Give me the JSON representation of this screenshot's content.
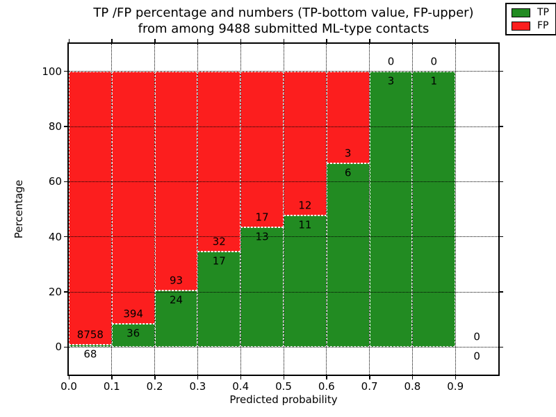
{
  "title": {
    "line1": "TP /FP percentage and numbers (TP-bottom value, FP-upper)",
    "line2": "from among 9488 submitted ML-type contacts"
  },
  "axes": {
    "xlabel": "Predicted probability",
    "ylabel": "Percentage",
    "xtick_labels": [
      "0.0",
      "0.1",
      "0.2",
      "0.3",
      "0.4",
      "0.5",
      "0.6",
      "0.7",
      "0.8",
      "0.9"
    ],
    "ytick_labels": [
      "0",
      "20",
      "40",
      "60",
      "80",
      "100"
    ]
  },
  "legend": [
    {
      "label": "TP",
      "color": "#228b22"
    },
    {
      "label": "FP",
      "color": "#fc1e1e"
    }
  ],
  "colors": {
    "tp": "#228b22",
    "fp": "#fc1e1e",
    "grid": "#000000",
    "bar_edge": "#ffffff"
  },
  "chart_data": {
    "type": "bar",
    "stacked": true,
    "normalized_to_percent": true,
    "title": "TP /FP percentage and numbers (TP-bottom value, FP-upper) from among 9488 submitted ML-type contacts",
    "xlabel": "Predicted probability",
    "ylabel": "Percentage",
    "total_contacts": 9488,
    "bin_width": 0.1,
    "bin_starts": [
      0.0,
      0.1,
      0.2,
      0.3,
      0.4,
      0.5,
      0.6,
      0.7,
      0.8,
      0.9
    ],
    "series": [
      {
        "name": "TP",
        "color": "#228b22",
        "position": "bottom",
        "values": [
          68,
          36,
          24,
          17,
          13,
          11,
          6,
          3,
          1,
          0
        ]
      },
      {
        "name": "FP",
        "color": "#fc1e1e",
        "position": "top",
        "values": [
          8758,
          394,
          93,
          32,
          17,
          12,
          3,
          0,
          0,
          0
        ]
      }
    ],
    "xlim": [
      0.0,
      1.0
    ],
    "ylim": [
      -10,
      110
    ],
    "xticks": [
      0.0,
      0.1,
      0.2,
      0.3,
      0.4,
      0.5,
      0.6,
      0.7,
      0.8,
      0.9
    ],
    "yticks": [
      0,
      20,
      40,
      60,
      80,
      100
    ],
    "grid": "dotted, drawn above bars",
    "legend_position": "upper right"
  }
}
